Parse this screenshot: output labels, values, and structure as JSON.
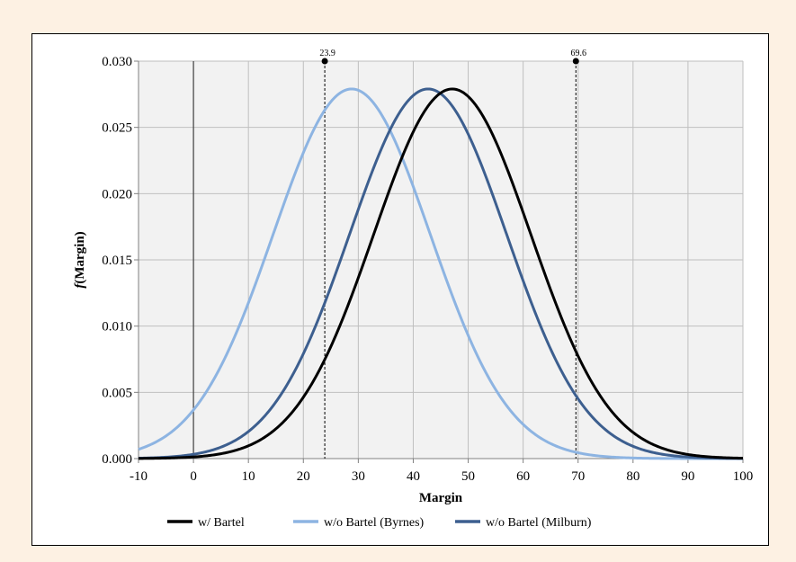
{
  "chart_data": {
    "type": "line",
    "title": "",
    "xlabel": "Margin",
    "ylabel_italic": "f",
    "ylabel_rest": "(Margin)",
    "xlim": [
      -10,
      100
    ],
    "ylim": [
      0,
      0.03
    ],
    "x_ticks": [
      -10,
      0,
      10,
      20,
      30,
      40,
      50,
      60,
      70,
      80,
      90,
      100
    ],
    "y_ticks": [
      "0.000",
      "0.005",
      "0.010",
      "0.015",
      "0.020",
      "0.025",
      "0.030"
    ],
    "grid": true,
    "legend_position": "bottom",
    "series": [
      {
        "name": "w/ Bartel",
        "color": "#000000",
        "mean": 47.1,
        "std": 14.3,
        "x": [
          -10,
          0,
          10,
          20,
          30,
          40,
          47.1,
          50,
          60,
          70,
          80,
          90,
          100
        ],
        "y": [
          0.0001,
          0.0004,
          0.001,
          0.0044,
          0.0134,
          0.0246,
          0.0279,
          0.0272,
          0.0186,
          0.0075,
          0.002,
          0.0003,
          0.0
        ]
      },
      {
        "name": "w/o Bartel (Byrnes)",
        "color": "#8db4e2",
        "mean": 28.8,
        "std": 14.3,
        "x": [
          -10,
          0,
          10,
          20,
          28.8,
          30,
          40,
          50,
          60,
          70,
          80
        ],
        "y": [
          0.0004,
          0.0014,
          0.0075,
          0.0193,
          0.0279,
          0.0276,
          0.0205,
          0.0092,
          0.0026,
          0.0004,
          0.0
        ]
      },
      {
        "name": "w/o Bartel (Milburn)",
        "color": "#3d5f8f",
        "mean": 42.7,
        "std": 14.3,
        "x": [
          -10,
          0,
          10,
          20,
          30,
          42.7,
          50,
          60,
          70,
          80,
          90
        ],
        "y": [
          0.0001,
          0.0003,
          0.002,
          0.008,
          0.0188,
          0.0279,
          0.0242,
          0.0132,
          0.0032,
          0.0006,
          0.0001
        ]
      }
    ],
    "annotations": [
      {
        "x": 23.9,
        "label": "23.9"
      },
      {
        "x": 69.6,
        "label": "69.6"
      }
    ]
  }
}
